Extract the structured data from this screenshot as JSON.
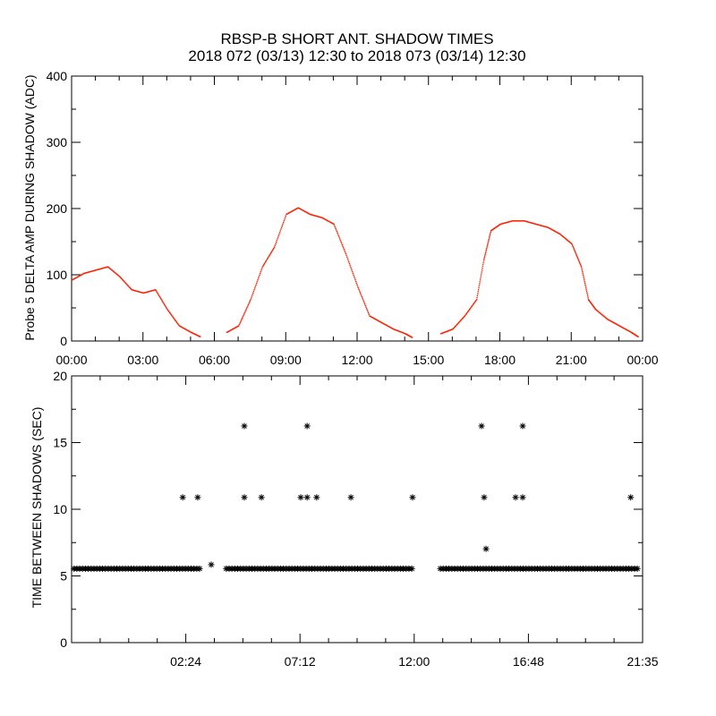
{
  "chart_data": [
    {
      "type": "scatter",
      "title": "RBSP-B SHORT ANT. SHADOW TIMES",
      "subtitle": "2018 072 (03/13) 12:30 to 2018 073 (03/14) 12:30",
      "ylabel": "Probe 5 DELTA AMP DURING SHADOW (ADC)",
      "xlabel": "",
      "xlim_hours": [
        0,
        24
      ],
      "ylim": [
        0,
        400
      ],
      "xtick_labels": [
        "00:00",
        "03:00",
        "06:00",
        "09:00",
        "12:00",
        "15:00",
        "18:00",
        "21:00",
        "00:00"
      ],
      "ytick_labels": [
        "0",
        "100",
        "200",
        "300",
        "400"
      ],
      "color": "#ff2000",
      "series": [
        {
          "x": [
            0,
            0.5,
            1,
            1.5,
            2,
            2.5,
            3,
            3.5,
            4,
            4.5,
            5,
            5.4
          ],
          "y": [
            90,
            100,
            105,
            110,
            95,
            75,
            70,
            75,
            45,
            20,
            10,
            3
          ]
        },
        {
          "x": [
            6.5,
            7,
            7.5,
            8,
            8.5,
            9,
            9.5,
            10,
            10.5,
            11,
            11.5,
            12,
            12.5,
            13,
            13.5,
            14,
            14.3
          ],
          "y": [
            10,
            20,
            60,
            110,
            140,
            190,
            200,
            190,
            185,
            175,
            130,
            80,
            35,
            25,
            15,
            8,
            2
          ]
        },
        {
          "x": [
            15.5,
            16,
            16.5,
            17,
            17.3,
            17.6,
            18,
            18.5,
            19,
            19.5,
            20,
            20.5,
            21,
            21.4,
            21.7,
            22,
            22.5,
            23,
            23.5,
            23.8
          ],
          "y": [
            8,
            15,
            35,
            60,
            120,
            165,
            175,
            180,
            180,
            175,
            170,
            160,
            145,
            110,
            60,
            45,
            30,
            20,
            10,
            3
          ]
        }
      ]
    },
    {
      "type": "scatter",
      "ylabel": "TIME BETWEEN SHADOWS (SEC)",
      "xlabel": "",
      "xlim_hours": [
        0,
        24
      ],
      "ylim": [
        0,
        20
      ],
      "xtick_labels": [
        "02:24",
        "07:12",
        "12:00",
        "16:48",
        "21:35"
      ],
      "ytick_labels": [
        "0",
        "5",
        "10",
        "15",
        "20"
      ],
      "color": "#000000",
      "marker": "asterisk",
      "baseline": {
        "value": 5.4,
        "ranges_hours": [
          [
            0.1,
            5.4
          ],
          [
            6.5,
            14.3
          ],
          [
            15.5,
            23.8
          ]
        ]
      },
      "points": [
        {
          "x": 4.67,
          "y": 10.8
        },
        {
          "x": 5.3,
          "y": 10.8
        },
        {
          "x": 5.87,
          "y": 5.7
        },
        {
          "x": 7.26,
          "y": 16.2
        },
        {
          "x": 7.26,
          "y": 10.8
        },
        {
          "x": 7.98,
          "y": 10.8
        },
        {
          "x": 9.63,
          "y": 10.8
        },
        {
          "x": 9.9,
          "y": 16.2
        },
        {
          "x": 9.9,
          "y": 10.8
        },
        {
          "x": 10.3,
          "y": 10.8
        },
        {
          "x": 11.74,
          "y": 10.8
        },
        {
          "x": 14.33,
          "y": 10.8
        },
        {
          "x": 17.23,
          "y": 16.2
        },
        {
          "x": 17.34,
          "y": 10.8
        },
        {
          "x": 17.42,
          "y": 6.9
        },
        {
          "x": 18.66,
          "y": 10.8
        },
        {
          "x": 18.96,
          "y": 16.2
        },
        {
          "x": 18.96,
          "y": 10.8
        },
        {
          "x": 23.5,
          "y": 10.8
        }
      ]
    }
  ]
}
